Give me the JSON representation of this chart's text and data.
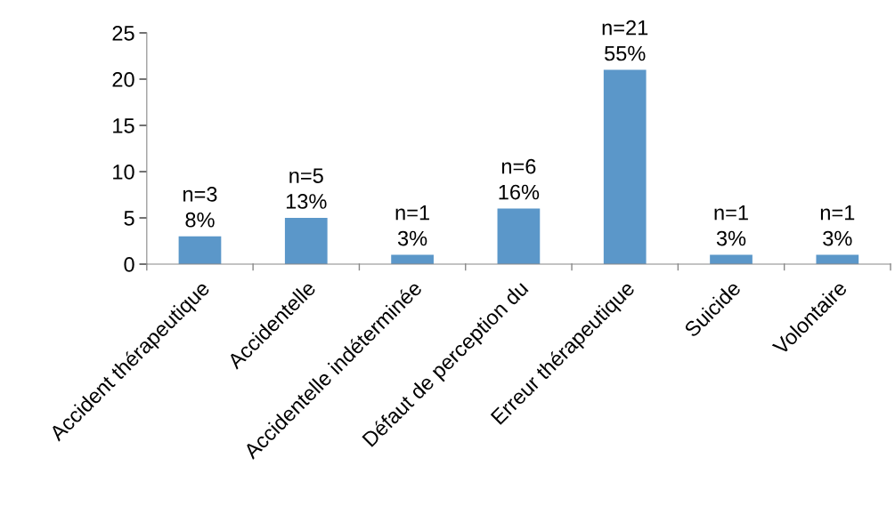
{
  "chart_data": {
    "type": "bar",
    "categories": [
      "Accident thérapeutique",
      "Accidentelle",
      "Accidentelle indéterminée",
      "Défaut de perception du",
      "Erreur thérapeutique",
      "Suicide",
      "Volontaire"
    ],
    "values": [
      3,
      5,
      1,
      6,
      21,
      1,
      1
    ],
    "value_labels": [
      "n=3\n8%",
      "n=5\n13%",
      "n=1\n3%",
      "n=6\n16%",
      "n=21\n55%",
      "n=1\n3%",
      "n=1\n3%"
    ],
    "color": "#5b97c9",
    "ylim": [
      0,
      25
    ],
    "yticks": [
      0,
      5,
      10,
      15,
      20,
      25
    ],
    "grid": false
  }
}
